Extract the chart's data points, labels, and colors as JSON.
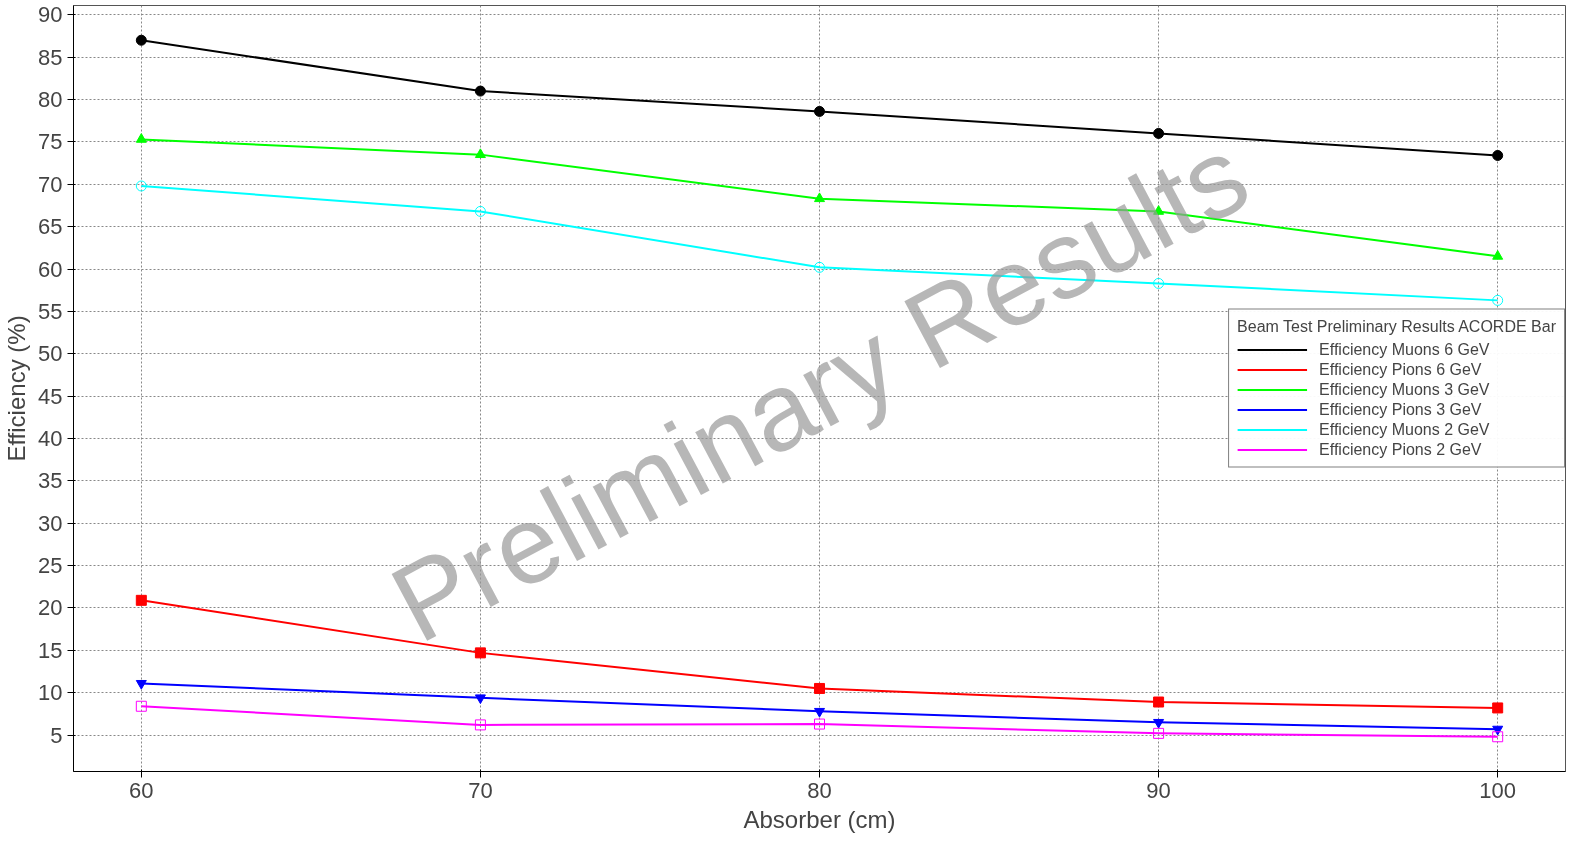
{
  "chart_data": {
    "type": "line",
    "xlabel": "Absorber (cm)",
    "ylabel": "Efficiency (%)",
    "legend_title": "Beam Test Preliminary Results ACORDE Bar",
    "x": [
      60,
      70,
      80,
      90,
      100
    ],
    "series": [
      {
        "name": "Efficiency Muons 6 GeV",
        "color": "#000000",
        "marker": "circle",
        "values": [
          87,
          81,
          78.6,
          76,
          73.4
        ]
      },
      {
        "name": "Efficiency Pions 6 GeV",
        "color": "#ff0000",
        "marker": "square",
        "values": [
          20.9,
          14.7,
          10.5,
          8.9,
          8.2
        ]
      },
      {
        "name": "Efficiency Muons 3 GeV",
        "color": "#00ff00",
        "marker": "triangle",
        "values": [
          75.3,
          73.5,
          68.3,
          66.8,
          61.5
        ]
      },
      {
        "name": "Efficiency Pions 3 GeV",
        "color": "#0000ff",
        "marker": "triangle_down",
        "values": [
          11.1,
          9.4,
          7.8,
          6.5,
          5.7
        ]
      },
      {
        "name": "Efficiency Muons 2 GeV",
        "color": "#00ffff",
        "marker": "circle_open",
        "values": [
          69.8,
          66.8,
          60.2,
          58.3,
          56.3
        ]
      },
      {
        "name": "Efficiency Pions 2 GeV",
        "color": "#ff00ff",
        "marker": "square_open",
        "values": [
          8.4,
          6.2,
          6.3,
          5.2,
          4.8
        ]
      }
    ],
    "xlim": [
      58,
      102
    ],
    "ylim": [
      0.7,
      91.1
    ],
    "xticks": [
      60,
      70,
      80,
      90,
      100
    ],
    "yticks": [
      5,
      10,
      15,
      20,
      25,
      30,
      35,
      40,
      45,
      50,
      55,
      60,
      65,
      70,
      75,
      80,
      85,
      90
    ],
    "grid": true,
    "legend": "right",
    "line_style": "solid",
    "annotations": [
      "Preliminary Results"
    ]
  }
}
